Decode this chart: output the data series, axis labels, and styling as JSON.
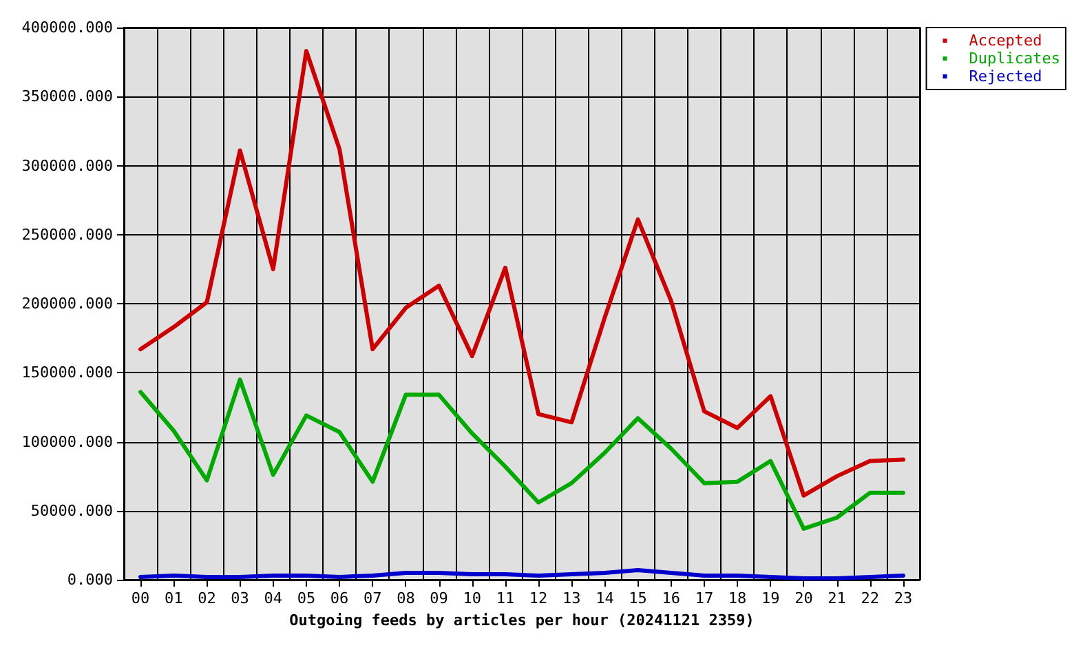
{
  "chart_data": {
    "type": "line",
    "xlabel": "Outgoing feeds by articles per hour (20241121 2359)",
    "categories": [
      "00",
      "01",
      "02",
      "03",
      "04",
      "05",
      "06",
      "07",
      "08",
      "09",
      "10",
      "11",
      "12",
      "13",
      "14",
      "15",
      "16",
      "17",
      "18",
      "19",
      "20",
      "21",
      "22",
      "23"
    ],
    "series": [
      {
        "name": "Accepted",
        "color": "#cc0000",
        "values": [
          167000,
          183000,
          201000,
          311000,
          225000,
          383000,
          312000,
          167000,
          197000,
          213000,
          162000,
          226000,
          120000,
          114000,
          190000,
          261000,
          202000,
          122000,
          110000,
          133000,
          61000,
          75000,
          86000,
          87000
        ]
      },
      {
        "name": "Duplicates",
        "color": "#00aa00",
        "values": [
          136000,
          108000,
          72000,
          145000,
          76000,
          119000,
          107000,
          71000,
          134000,
          134000,
          106000,
          82000,
          56000,
          70000,
          92000,
          117000,
          95000,
          70000,
          71000,
          86000,
          37000,
          45000,
          63000,
          63000
        ]
      },
      {
        "name": "Rejected",
        "color": "#0000cc",
        "values": [
          2000,
          3000,
          2000,
          2000,
          3000,
          3000,
          2000,
          3000,
          5000,
          5000,
          4000,
          4000,
          3000,
          4000,
          5000,
          7000,
          5000,
          3000,
          3000,
          2000,
          1000,
          1000,
          2000,
          3000
        ]
      }
    ],
    "ylim": [
      0,
      400000
    ],
    "yticks": [
      {
        "value": 0,
        "label": "0.000"
      },
      {
        "value": 50000,
        "label": "50000.000"
      },
      {
        "value": 100000,
        "label": "100000.000"
      },
      {
        "value": 150000,
        "label": "150000.000"
      },
      {
        "value": 200000,
        "label": "200000.000"
      },
      {
        "value": 250000,
        "label": "250000.000"
      },
      {
        "value": 300000,
        "label": "300000.000"
      },
      {
        "value": 350000,
        "label": "350000.000"
      },
      {
        "value": 400000,
        "label": "400000.000"
      }
    ],
    "grid": true,
    "legend": "top right",
    "marker": "none",
    "line_style": "solid"
  }
}
